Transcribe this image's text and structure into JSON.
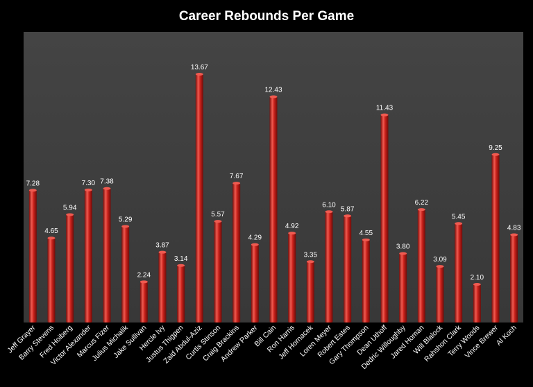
{
  "chart_data": {
    "type": "bar",
    "title": "Career Rebounds Per Game",
    "xlabel": "",
    "ylabel": "",
    "ylim": [
      0,
      16
    ],
    "grid": false,
    "legend": "none",
    "categories": [
      "Jeff Grayer",
      "Barry Stevens",
      "Fred Hoiberg",
      "Victor Alexander",
      "Marcus Fizer",
      "Julius Michalik",
      "Jake Sullivan",
      "Hercle Ivy",
      "Justus Thigpen",
      "Zaid Abdul-Aziz",
      "Curtis Stinson",
      "Craig Brackins",
      "Andrew Parker",
      "Bill Cain",
      "Ron Harris",
      "Jeff Hornacek",
      "Loren Meyer",
      "Robert Estes",
      "Gary Thompson",
      "Dean Uthoff",
      "Dedric Willoughby",
      "Jared Homan",
      "Will Blalock",
      "Rahshon Clark",
      "Terry Woods",
      "Vince Brewer",
      "Al Koch"
    ],
    "values": [
      7.28,
      4.65,
      5.94,
      7.3,
      7.38,
      5.29,
      2.24,
      3.87,
      3.14,
      13.67,
      5.57,
      7.67,
      4.29,
      12.43,
      4.92,
      3.35,
      6.1,
      5.87,
      4.55,
      11.43,
      3.8,
      6.22,
      3.09,
      5.45,
      2.1,
      9.25,
      4.83
    ],
    "value_labels": [
      "7.28",
      "4.65",
      "5.94",
      "7.30",
      "7.38",
      "5.29",
      "2.24",
      "3.87",
      "3.14",
      "13.67",
      "5.57",
      "7.67",
      "4.29",
      "12.43",
      "4.92",
      "3.35",
      "6.10",
      "5.87",
      "4.55",
      "11.43",
      "3.80",
      "6.22",
      "3.09",
      "5.45",
      "2.10",
      "9.25",
      "4.83"
    ]
  },
  "colors": {
    "background": "#000000",
    "plot_area": "#3f3f3f",
    "bar_light": "#f05a50",
    "bar_mid": "#c8211b",
    "bar_dark": "#7a0d0a",
    "text": "#ffffff"
  }
}
